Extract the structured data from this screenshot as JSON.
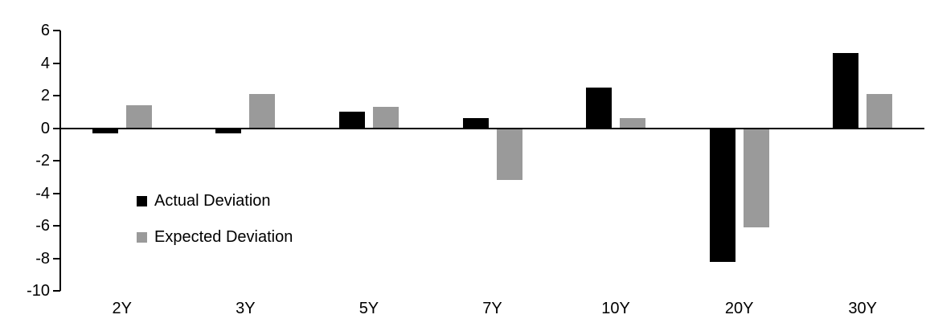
{
  "chart_data": {
    "type": "bar",
    "title": "",
    "xlabel": "",
    "ylabel": "",
    "categories": [
      "2Y",
      "3Y",
      "5Y",
      "7Y",
      "10Y",
      "20Y",
      "30Y"
    ],
    "series": [
      {
        "name": "Actual Deviation",
        "color": "#000000",
        "values": [
          -0.3,
          -0.3,
          1.0,
          0.6,
          2.5,
          -8.2,
          4.6
        ]
      },
      {
        "name": "Expected Deviation",
        "color": "#9a9a9a",
        "values": [
          1.4,
          2.1,
          1.3,
          -3.2,
          0.6,
          -6.1,
          2.1
        ]
      }
    ],
    "ylim": [
      -10,
      6
    ],
    "yticks": [
      6,
      4,
      2,
      0,
      -2,
      -4,
      -6,
      -8,
      -10
    ],
    "grid": false,
    "legend_position": "inside-left-middle"
  },
  "colors": {
    "background": "#ffffff",
    "axis": "#000000",
    "text": "#000000"
  }
}
